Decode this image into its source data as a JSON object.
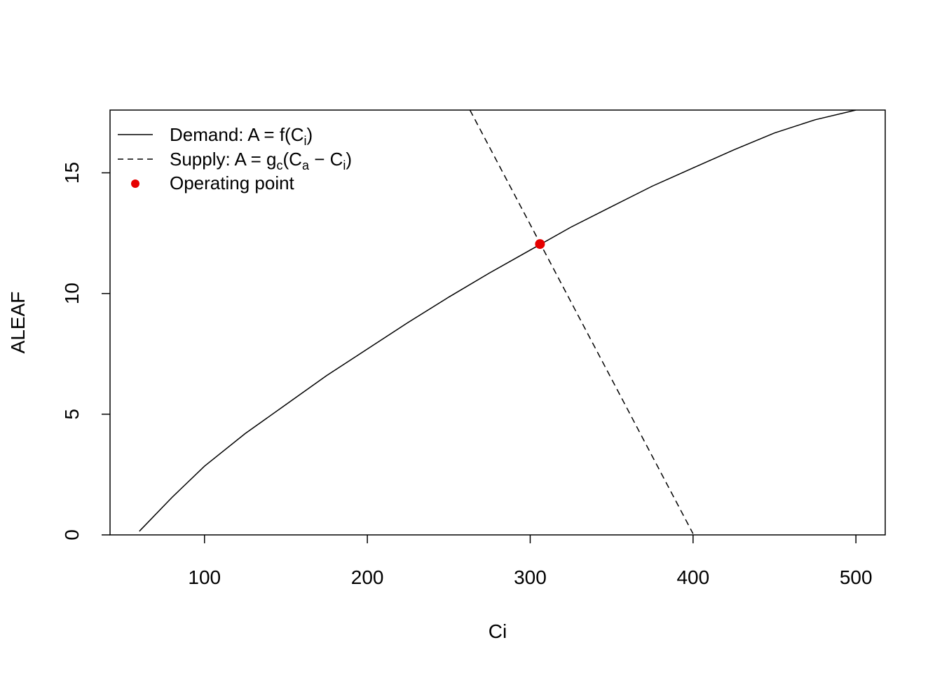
{
  "chart_data": {
    "type": "line",
    "title": "",
    "xlabel": "Ci",
    "ylabel": "ALEAF",
    "xlim": [
      42,
      518
    ],
    "ylim": [
      0,
      17.6
    ],
    "x_ticks": [
      100,
      200,
      300,
      400,
      500
    ],
    "y_ticks": [
      0,
      5,
      10,
      15
    ],
    "grid": false,
    "legend_position": "top-left",
    "series": [
      {
        "name": "Demand:  A = f(Ci)",
        "style": "solid",
        "color": "#000000",
        "points": [
          [
            60,
            0.15
          ],
          [
            80,
            1.55
          ],
          [
            100,
            2.85
          ],
          [
            125,
            4.2
          ],
          [
            150,
            5.4
          ],
          [
            175,
            6.6
          ],
          [
            200,
            7.7
          ],
          [
            225,
            8.8
          ],
          [
            250,
            9.85
          ],
          [
            275,
            10.85
          ],
          [
            300,
            11.8
          ],
          [
            325,
            12.75
          ],
          [
            350,
            13.6
          ],
          [
            375,
            14.45
          ],
          [
            400,
            15.2
          ],
          [
            425,
            15.95
          ],
          [
            450,
            16.65
          ],
          [
            475,
            17.2
          ],
          [
            500,
            17.6
          ]
        ]
      },
      {
        "name": "Supply:  A = gc(Ca − Ci)",
        "style": "dashed",
        "color": "#000000",
        "points": [
          [
            263,
            17.6
          ],
          [
            400,
            0.05
          ]
        ]
      },
      {
        "name": "Operating point",
        "style": "point",
        "color": "#e60000",
        "points": [
          [
            306,
            12.05
          ]
        ]
      }
    ],
    "legend": {
      "demand": {
        "prefix": "Demand:  A = f(C",
        "sub": "i",
        "suffix": ")"
      },
      "supply": {
        "prefix": "Supply:  A = g",
        "sub1": "c",
        "mid": "(C",
        "sub2": "a",
        "mid2": " − C",
        "sub3": "i",
        "suffix": ")"
      },
      "operating": "Operating point"
    }
  }
}
